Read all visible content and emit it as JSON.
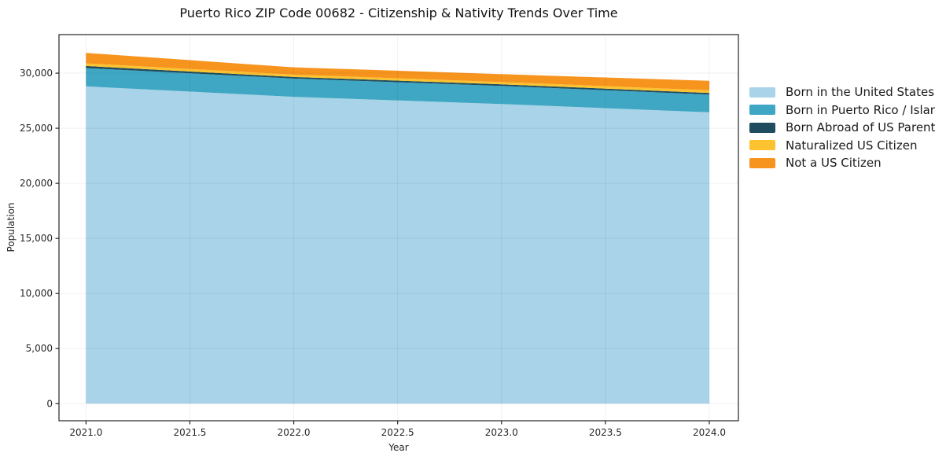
{
  "chart_data": {
    "type": "area",
    "stacked": true,
    "title": "Puerto Rico ZIP Code 00682 - Citizenship & Nativity Trends Over Time",
    "xlabel": "Year",
    "ylabel": "Population",
    "x": [
      2021,
      2022,
      2023,
      2024
    ],
    "series": [
      {
        "name": "Born in the United States",
        "color": "#a8d3e8",
        "values": [
          28800,
          27850,
          27200,
          26450
        ]
      },
      {
        "name": "Born in Puerto Rico / Islands",
        "color": "#3fa7c4",
        "values": [
          1660,
          1660,
          1640,
          1610
        ]
      },
      {
        "name": "Born Abroad of US Parent(s)",
        "color": "#1f4d5f",
        "values": [
          190,
          145,
          145,
          145
        ]
      },
      {
        "name": "Naturalized US Citizen",
        "color": "#fdc32f",
        "values": [
          235,
          215,
          210,
          240
        ]
      },
      {
        "name": "Not a US Citizen",
        "color": "#f7941e",
        "values": [
          950,
          660,
          715,
          855
        ]
      }
    ],
    "x_ticks": [
      "2021.0",
      "2021.5",
      "2022.0",
      "2022.5",
      "2023.0",
      "2023.5",
      "2024.0"
    ],
    "x_tick_values": [
      2021,
      2021.5,
      2022,
      2022.5,
      2023,
      2023.5,
      2024
    ],
    "y_ticks": [
      "0",
      "5,000",
      "10,000",
      "15,000",
      "20,000",
      "25,000",
      "30,000"
    ],
    "y_tick_values": [
      0,
      5000,
      10000,
      15000,
      20000,
      25000,
      30000
    ],
    "xlim": [
      2020.87,
      2024.14
    ],
    "ylim": [
      -1550,
      33500
    ],
    "grid": true,
    "legend_position": "right",
    "colors": {
      "spine": "#262626",
      "tick": "#262626",
      "grid": "rgba(0,0,0,0.06)",
      "title_text": "#111111",
      "tick_text": "#262626"
    }
  }
}
